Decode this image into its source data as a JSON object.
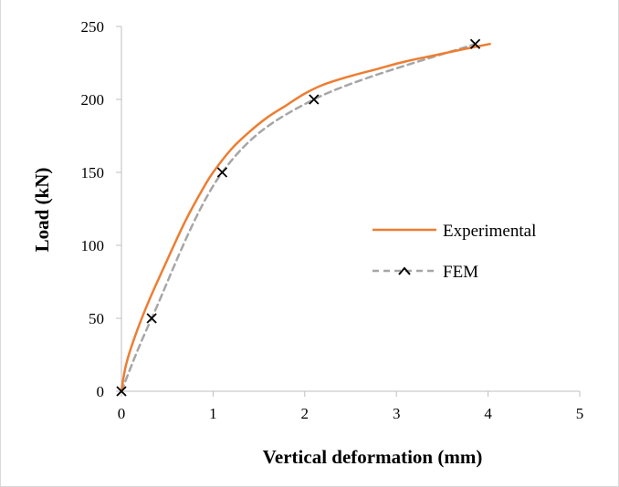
{
  "chart_data": {
    "type": "line",
    "title": "",
    "xlabel": "Vertical deformation (mm)",
    "ylabel": "Load (kN)",
    "xlim": [
      0,
      5
    ],
    "ylim": [
      0,
      250
    ],
    "xticks": [
      "0",
      "1",
      "2",
      "3",
      "4",
      "5"
    ],
    "yticks": [
      "0",
      "50",
      "100",
      "150",
      "200",
      "250"
    ],
    "grid": false,
    "legend_position": "right",
    "series": [
      {
        "name": "Experimental",
        "color": "#ed7d31",
        "style": "solid",
        "x": [
          0,
          0.05,
          0.15,
          0.3,
          0.5,
          0.7,
          0.9,
          1.0,
          1.2,
          1.4,
          1.6,
          1.8,
          2.0,
          2.2,
          2.5,
          2.8,
          3.1,
          3.4,
          3.7,
          4.02
        ],
        "y": [
          0,
          18,
          38,
          62,
          90,
          117,
          140,
          150,
          166,
          178,
          188,
          196,
          204,
          210,
          216,
          221,
          226,
          230,
          234,
          238
        ]
      },
      {
        "name": "FEM",
        "color": "#a6a6a6",
        "style": "dashed",
        "marker": "x",
        "marker_color": "#000000",
        "x": [
          0,
          0.33,
          1.1,
          2.1,
          3.86
        ],
        "y": [
          0,
          50,
          150,
          200,
          238
        ]
      }
    ]
  }
}
